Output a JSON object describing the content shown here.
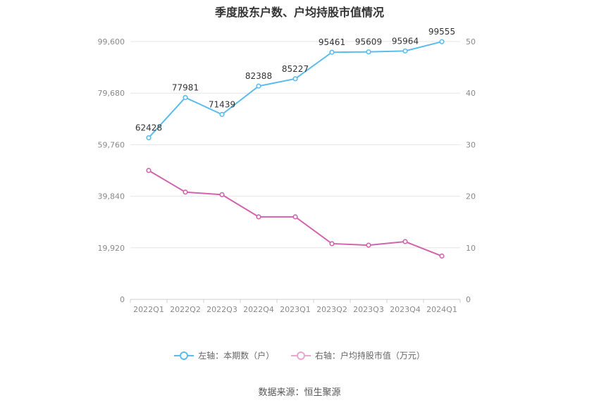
{
  "chart_data": {
    "type": "line",
    "title": "季度股东户数、户均持股市值情况",
    "categories": [
      "2022Q1",
      "2022Q2",
      "2022Q3",
      "2022Q4",
      "2023Q1",
      "2023Q2",
      "2023Q3",
      "2023Q4",
      "2024Q1"
    ],
    "left_axis": {
      "ticks": [
        "0",
        "19,920",
        "39,840",
        "59,760",
        "79,680",
        "99,600"
      ],
      "range": [
        0,
        99600
      ]
    },
    "right_axis": {
      "ticks": [
        "0",
        "10",
        "20",
        "30",
        "40",
        "50"
      ],
      "range": [
        0,
        50
      ]
    },
    "series": [
      {
        "name": "左轴：本期数（户）",
        "axis": "left",
        "color": "#5bbcee",
        "values": [
          62428,
          77981,
          71439,
          82388,
          85227,
          95461,
          95609,
          95964,
          99555
        ],
        "labels": [
          "62428",
          "77981",
          "71439",
          "82388",
          "85227",
          "95461",
          "95609",
          "95964",
          "99555"
        ]
      },
      {
        "name": "右轴：户均持股市值（万元）",
        "axis": "right",
        "color": "#d264ae",
        "values": [
          25.0,
          20.8,
          20.3,
          16.0,
          16.0,
          10.8,
          10.5,
          11.2,
          8.4
        ]
      }
    ],
    "grid": true,
    "legend_position": "bottom"
  },
  "legend": [
    {
      "label": "左轴：本期数（户）",
      "color": "#5bbcee"
    },
    {
      "label": "右轴：户均持股市值（万元）",
      "color": "#e8a6d2"
    }
  ],
  "source": "数据来源：恒生聚源"
}
